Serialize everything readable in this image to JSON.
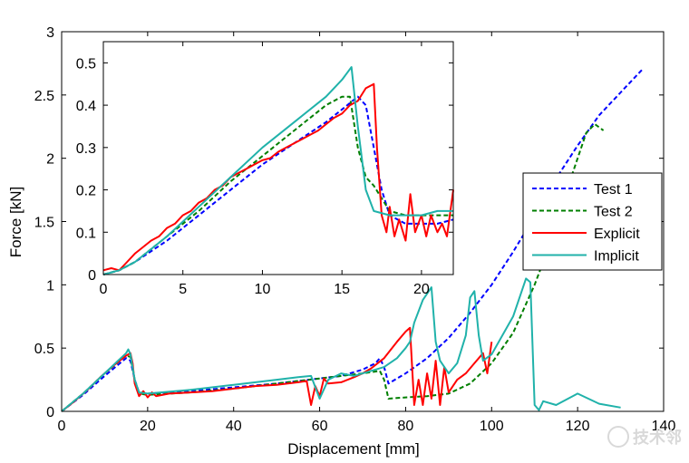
{
  "chart_data": [
    {
      "type": "line",
      "id": "main",
      "xlabel": "Displacement [mm]",
      "ylabel": "Force [kN]",
      "xlim": [
        0,
        140
      ],
      "ylim": [
        0,
        3
      ],
      "xticks": [
        0,
        20,
        40,
        60,
        80,
        100,
        120,
        140
      ],
      "yticks": [
        0,
        0.5,
        1,
        1.5,
        2,
        2.5,
        3
      ],
      "grid": false,
      "legend_position": "right",
      "series": [
        {
          "name": "Test 1",
          "color": "#0000ff",
          "style": "dashed",
          "x": [
            0,
            5,
            10,
            15,
            16,
            17,
            18,
            20,
            30,
            40,
            50,
            60,
            65,
            70,
            73,
            74,
            75,
            76,
            80,
            85,
            90,
            95,
            100,
            105,
            110,
            115,
            120,
            125,
            130,
            135
          ],
          "y": [
            0,
            0.13,
            0.28,
            0.42,
            0.4,
            0.25,
            0.15,
            0.14,
            0.16,
            0.19,
            0.22,
            0.26,
            0.28,
            0.33,
            0.38,
            0.42,
            0.35,
            0.22,
            0.3,
            0.42,
            0.58,
            0.78,
            1.0,
            1.26,
            1.54,
            1.84,
            2.1,
            2.34,
            2.52,
            2.7
          ]
        },
        {
          "name": "Test 2",
          "color": "#007f00",
          "style": "dashed",
          "x": [
            0,
            5,
            10,
            15,
            16,
            17,
            18,
            20,
            30,
            40,
            50,
            60,
            70,
            74,
            75,
            76,
            80,
            85,
            90,
            95,
            100,
            105,
            110,
            115,
            118,
            121,
            122,
            124,
            126
          ],
          "y": [
            0,
            0.14,
            0.3,
            0.44,
            0.43,
            0.25,
            0.14,
            0.13,
            0.15,
            0.18,
            0.22,
            0.26,
            0.3,
            0.32,
            0.25,
            0.1,
            0.11,
            0.12,
            0.14,
            0.22,
            0.38,
            0.62,
            1.0,
            1.45,
            1.8,
            2.1,
            2.2,
            2.27,
            2.22
          ]
        },
        {
          "name": "Explicit",
          "color": "#ff0000",
          "style": "solid",
          "x": [
            0,
            3,
            6,
            9,
            12,
            15,
            16,
            16.5,
            17,
            18,
            19,
            20,
            21,
            22,
            25,
            30,
            35,
            40,
            45,
            50,
            55,
            57,
            58,
            59,
            60,
            61,
            62,
            65,
            68,
            70,
            72,
            75,
            78,
            80,
            81,
            82,
            83,
            84,
            85,
            86,
            87,
            88,
            89,
            90,
            92,
            94,
            96,
            98,
            99,
            100
          ],
          "y": [
            0,
            0.08,
            0.17,
            0.27,
            0.36,
            0.44,
            0.46,
            0.38,
            0.22,
            0.12,
            0.16,
            0.11,
            0.15,
            0.12,
            0.14,
            0.15,
            0.16,
            0.18,
            0.2,
            0.21,
            0.23,
            0.24,
            0.05,
            0.2,
            0.12,
            0.26,
            0.22,
            0.23,
            0.27,
            0.3,
            0.34,
            0.42,
            0.55,
            0.63,
            0.66,
            0.05,
            0.25,
            0.05,
            0.3,
            0.1,
            0.4,
            0.05,
            0.35,
            0.15,
            0.25,
            0.3,
            0.38,
            0.46,
            0.3,
            0.55
          ]
        },
        {
          "name": "Implicit",
          "color": "#20b2aa",
          "style": "solid",
          "x": [
            0,
            5,
            10,
            15,
            15.5,
            16,
            17,
            18,
            20,
            30,
            40,
            50,
            55,
            58,
            60,
            62,
            65,
            68,
            70,
            72,
            75,
            78,
            80,
            81,
            82,
            84,
            86,
            87,
            88,
            90,
            92,
            94,
            95,
            96,
            97,
            98,
            100,
            105,
            108,
            109,
            110,
            111,
            112,
            115,
            120,
            125,
            130
          ],
          "y": [
            0,
            0.14,
            0.3,
            0.46,
            0.49,
            0.45,
            0.25,
            0.15,
            0.14,
            0.17,
            0.21,
            0.25,
            0.27,
            0.28,
            0.1,
            0.25,
            0.3,
            0.28,
            0.3,
            0.32,
            0.35,
            0.42,
            0.5,
            0.55,
            0.7,
            0.88,
            0.98,
            0.55,
            0.4,
            0.3,
            0.38,
            0.6,
            0.9,
            0.95,
            0.6,
            0.4,
            0.45,
            0.75,
            1.05,
            1.02,
            0.05,
            0.01,
            0.08,
            0.05,
            0.14,
            0.06,
            0.03
          ]
        }
      ]
    },
    {
      "type": "line",
      "id": "inset",
      "xlim": [
        0,
        22
      ],
      "ylim": [
        0,
        0.55
      ],
      "xticks": [
        0,
        5,
        10,
        15,
        20
      ],
      "yticks": [
        0,
        0.1,
        0.2,
        0.3,
        0.4,
        0.5
      ],
      "grid": false,
      "series": [
        {
          "name": "Test 1",
          "color": "#0000ff",
          "style": "dashed",
          "x": [
            0,
            1,
            2,
            4,
            6,
            8,
            10,
            12,
            14,
            15,
            16,
            16.5,
            17,
            17.5,
            18,
            19,
            20,
            21,
            22
          ],
          "y": [
            0,
            0.01,
            0.03,
            0.08,
            0.14,
            0.2,
            0.26,
            0.31,
            0.36,
            0.39,
            0.42,
            0.4,
            0.3,
            0.2,
            0.14,
            0.12,
            0.12,
            0.12,
            0.13
          ]
        },
        {
          "name": "Test 2",
          "color": "#007f00",
          "style": "dashed",
          "x": [
            0,
            1,
            2,
            4,
            6,
            8,
            10,
            12,
            14,
            15,
            15.5,
            16,
            16.5,
            17,
            18,
            19,
            20,
            21,
            22
          ],
          "y": [
            0,
            0.01,
            0.03,
            0.09,
            0.15,
            0.22,
            0.28,
            0.34,
            0.4,
            0.42,
            0.42,
            0.3,
            0.23,
            0.21,
            0.15,
            0.14,
            0.14,
            0.14,
            0.14
          ]
        },
        {
          "name": "Explicit",
          "color": "#ff0000",
          "style": "solid",
          "x": [
            0,
            0.5,
            1,
            1.5,
            2,
            2.5,
            3,
            3.5,
            4,
            4.5,
            5,
            5.5,
            6,
            6.5,
            7,
            7.5,
            8,
            8.5,
            9,
            9.5,
            10,
            10.5,
            11,
            11.5,
            12,
            12.5,
            13,
            13.5,
            14,
            14.5,
            15,
            15.5,
            16,
            16.5,
            17,
            17.2,
            17.5,
            17.8,
            18,
            18.3,
            18.6,
            19,
            19.3,
            19.6,
            20,
            20.3,
            20.6,
            21,
            21.3,
            21.6,
            22
          ],
          "y": [
            0.01,
            0.015,
            0.01,
            0.03,
            0.05,
            0.065,
            0.08,
            0.09,
            0.11,
            0.12,
            0.14,
            0.15,
            0.17,
            0.18,
            0.2,
            0.21,
            0.23,
            0.24,
            0.25,
            0.26,
            0.27,
            0.275,
            0.29,
            0.3,
            0.31,
            0.32,
            0.33,
            0.34,
            0.355,
            0.37,
            0.38,
            0.4,
            0.41,
            0.44,
            0.45,
            0.3,
            0.14,
            0.1,
            0.16,
            0.09,
            0.13,
            0.08,
            0.19,
            0.1,
            0.14,
            0.09,
            0.14,
            0.1,
            0.12,
            0.09,
            0.2
          ]
        },
        {
          "name": "Implicit",
          "color": "#20b2aa",
          "style": "solid",
          "x": [
            0,
            1,
            2,
            4,
            6,
            8,
            10,
            12,
            14,
            15,
            15.6,
            16,
            16.5,
            17,
            18,
            19,
            20,
            21,
            22
          ],
          "y": [
            0,
            0.01,
            0.03,
            0.09,
            0.16,
            0.23,
            0.3,
            0.36,
            0.42,
            0.46,
            0.49,
            0.35,
            0.2,
            0.15,
            0.14,
            0.14,
            0.14,
            0.15,
            0.15
          ]
        }
      ]
    }
  ],
  "watermark": "技术邻"
}
